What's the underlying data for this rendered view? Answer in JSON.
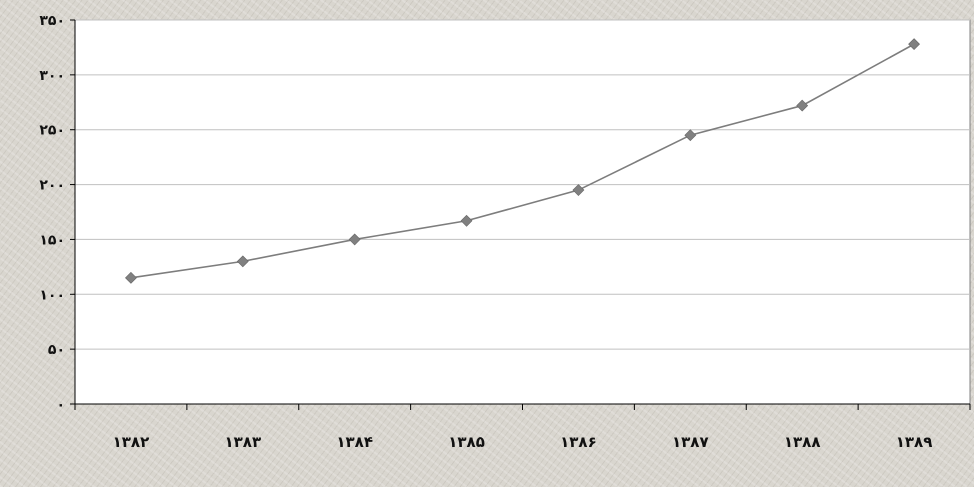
{
  "chart_data": {
    "type": "line",
    "title": "",
    "xlabel": "",
    "ylabel": "",
    "categories": [
      "۱۳۸۲",
      "۱۳۸۳",
      "۱۳۸۴",
      "۱۳۸۵",
      "۱۳۸۶",
      "۱۳۸۷",
      "۱۳۸۸",
      "۱۳۸۹"
    ],
    "series": [
      {
        "values": [
          115,
          130,
          150,
          167,
          195,
          245,
          272,
          328
        ]
      }
    ],
    "ylim": [
      0,
      350
    ],
    "yticks": [
      0,
      50,
      100,
      150,
      200,
      250,
      300,
      350
    ],
    "ytick_labels": [
      "۰",
      "۵۰",
      "۱۰۰",
      "۱۵۰",
      "۲۰۰",
      "۲۵۰",
      "۳۰۰",
      "۳۵۰"
    ],
    "grid": "horizontal",
    "legend": "none",
    "colors": {
      "line": "#7d7d7d",
      "marker": "#808080",
      "plot_background": "#ffffff",
      "gridline": "#c0c0c0"
    }
  }
}
